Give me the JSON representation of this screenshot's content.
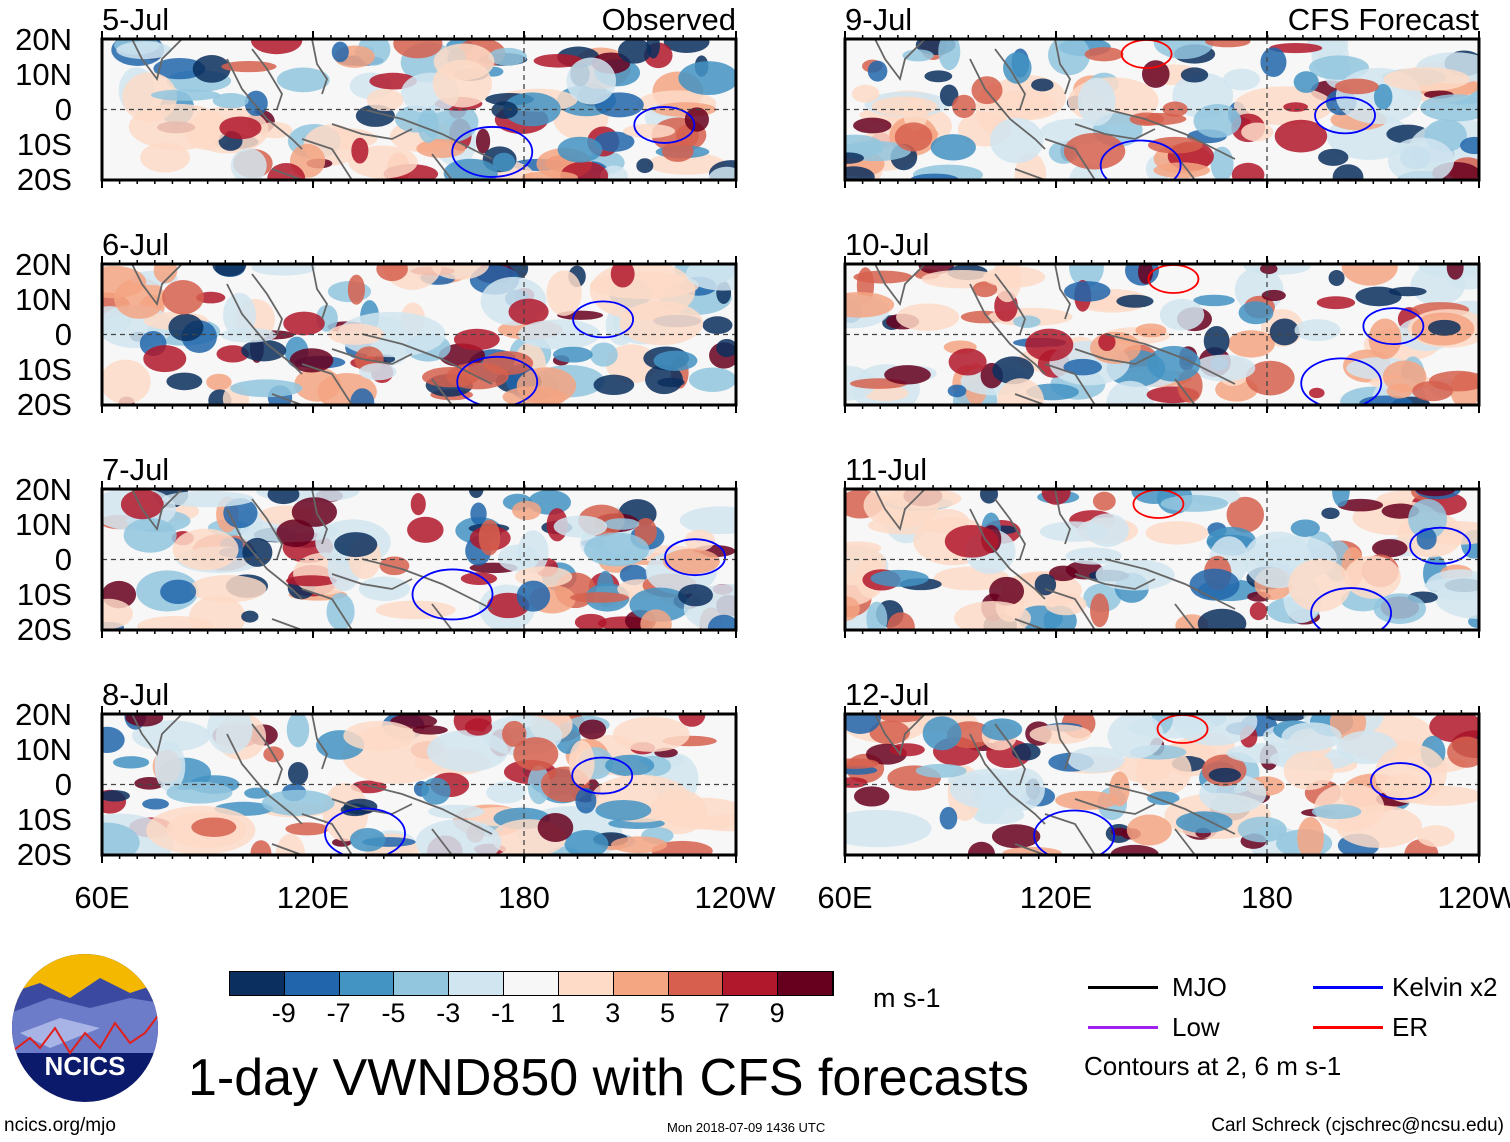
{
  "title": "1-day VWND850 with CFS forecasts",
  "observed_label": "Observed",
  "forecast_label": "CFS Forecast",
  "panels": {
    "observed": [
      "5-Jul",
      "6-Jul",
      "7-Jul",
      "8-Jul"
    ],
    "forecast": [
      "9-Jul",
      "10-Jul",
      "11-Jul",
      "12-Jul"
    ]
  },
  "lat_labels": [
    "20N",
    "10N",
    "0",
    "10S",
    "20S"
  ],
  "lon_labels": [
    "60E",
    "120E",
    "180",
    "120W"
  ],
  "colorbar": {
    "labels": [
      "-9",
      "-7",
      "-5",
      "-3",
      "-1",
      "1",
      "3",
      "5",
      "7",
      "9"
    ],
    "colors": [
      "#0b2f5e",
      "#2166ac",
      "#4393c3",
      "#92c5de",
      "#d1e5f0",
      "#f7f7f7",
      "#fddbc7",
      "#f4a582",
      "#d6604d",
      "#b2182b",
      "#67001f"
    ],
    "units": "m s-1"
  },
  "legend": {
    "items": [
      {
        "label": "MJO",
        "color": "#000000"
      },
      {
        "label": "Kelvin x2",
        "color": "#0000ff"
      },
      {
        "label": "Low",
        "color": "#a020f0"
      },
      {
        "label": "ER",
        "color": "#ff0000"
      }
    ],
    "note": "Contours at 2, 6 m s-1"
  },
  "logo_text": "NCICS",
  "footer": {
    "url": "ncics.org/mjo",
    "timestamp": "Mon 2018-07-09 1436 UTC",
    "author": "Carl Schreck (cjschrec@ncsu.edu)"
  }
}
